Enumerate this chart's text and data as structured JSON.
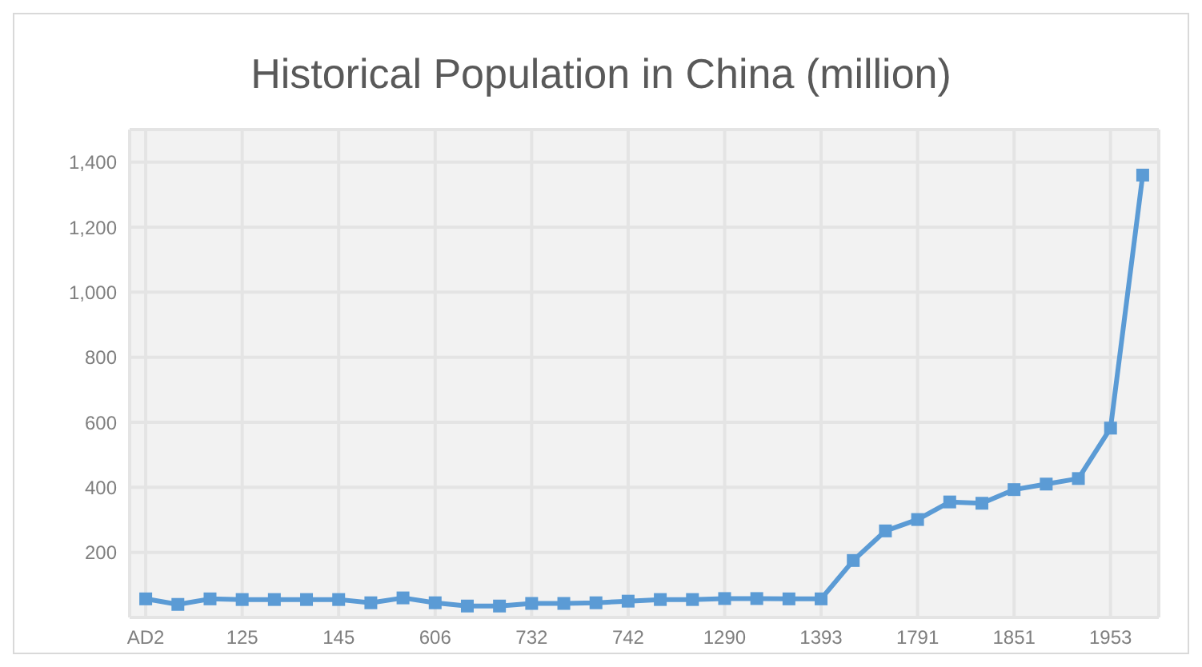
{
  "chart_data": {
    "type": "line",
    "title": "Historical Population in China (million)",
    "categories": [
      "AD2",
      null,
      null,
      "125",
      null,
      null,
      "145",
      null,
      null,
      "606",
      null,
      null,
      "732",
      null,
      null,
      "742",
      null,
      null,
      "1290",
      null,
      null,
      "1393",
      null,
      null,
      "1791",
      null,
      null,
      "1851",
      null,
      null,
      "1953",
      null
    ],
    "series": [
      {
        "color": "#5b9bd5",
        "values": [
          57,
          40,
          57,
          55,
          55,
          55,
          55,
          45,
          60,
          45,
          35,
          35,
          43,
          43,
          45,
          50,
          55,
          55,
          58,
          58,
          57,
          57,
          175,
          266,
          301,
          355,
          351,
          393,
          410,
          427,
          582,
          1360
        ]
      }
    ],
    "ylim": [
      0,
      1500
    ],
    "yticks": [
      {
        "value": 200,
        "label": "200"
      },
      {
        "value": 400,
        "label": "400"
      },
      {
        "value": 600,
        "label": "600"
      },
      {
        "value": 800,
        "label": "800"
      },
      {
        "value": 1000,
        "label": "1,000"
      },
      {
        "value": 1200,
        "label": "1,200"
      },
      {
        "value": 1400,
        "label": "1,400"
      }
    ],
    "grid": true,
    "marker": "square",
    "line_style": "solid"
  }
}
